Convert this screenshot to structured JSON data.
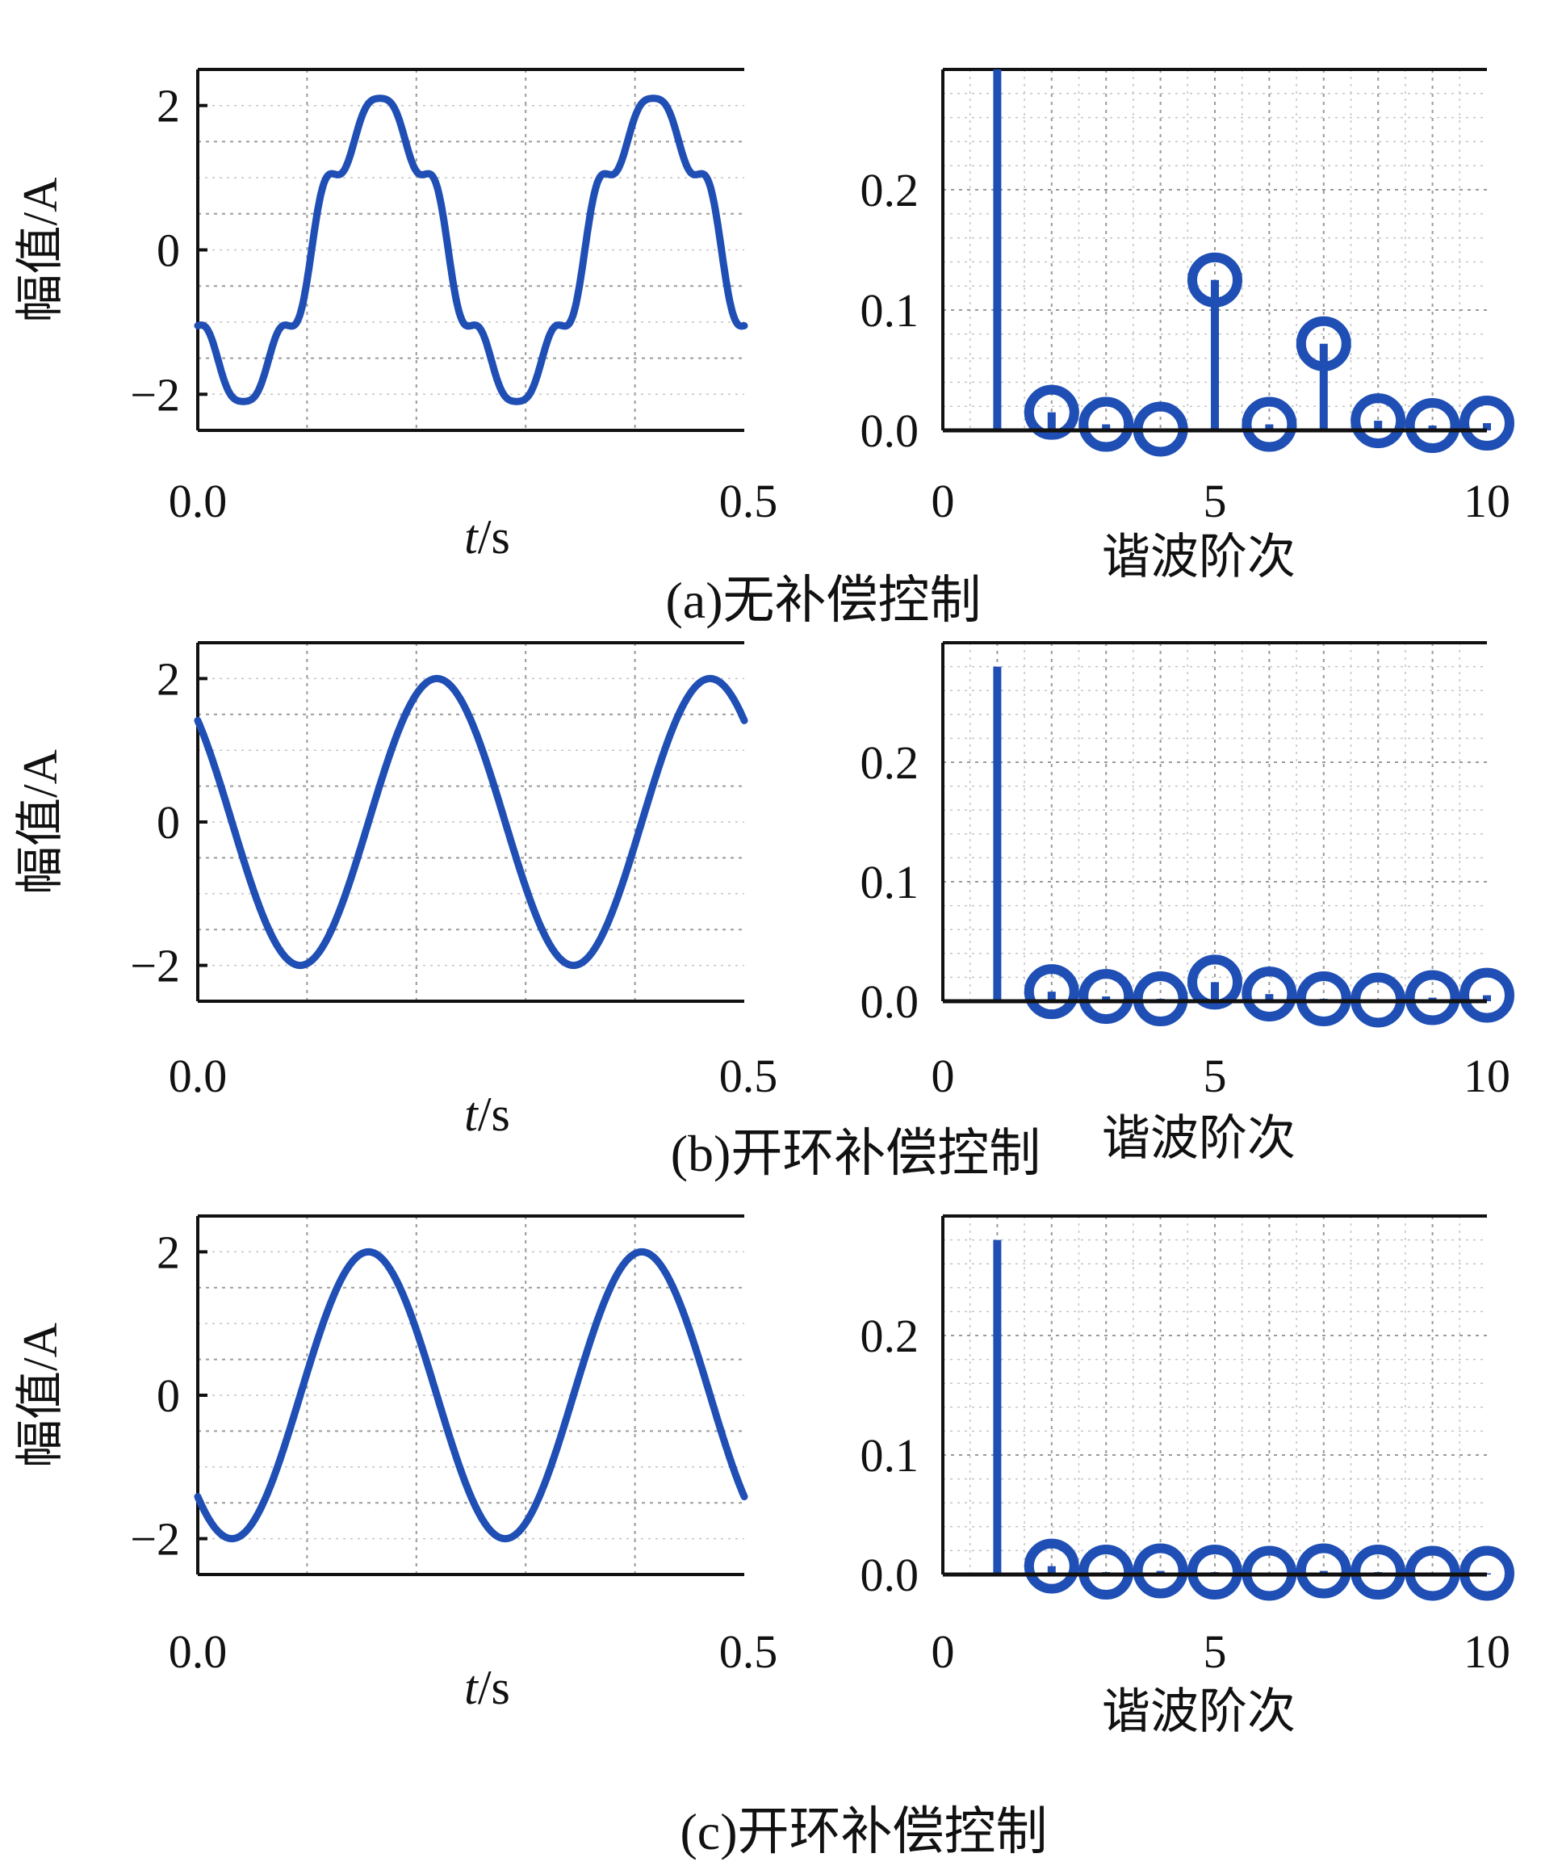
{
  "chart_data": [
    {
      "panel": "a",
      "caption": "(a)无补偿控制",
      "waveform": {
        "type": "line",
        "xlabel": "t/s",
        "ylabel": "幅值/A",
        "xlim": [
          0,
          0.5
        ],
        "ylim": [
          -2.5,
          2.5
        ],
        "xticks": [
          "0.0",
          "0.5"
        ],
        "yticks": [
          "2",
          "0",
          "−2"
        ],
        "ytick_values": [
          2,
          0,
          -2
        ],
        "grid": true,
        "series": [
          {
            "color": "#1f4fb4",
            "amplitude": 2.0,
            "frequency_hz": 4,
            "phase_deg": 210,
            "harmonics": [
              {
                "order": 5,
                "amplitude": 0.24
              },
              {
                "order": 7,
                "amplitude": 0.14
              }
            ]
          }
        ]
      },
      "spectrum": {
        "type": "bar",
        "style": "stem",
        "xlabel": "谐波阶次",
        "xlim": [
          0,
          10
        ],
        "ylim": [
          0,
          0.3
        ],
        "xticks": [
          "0",
          "5",
          "10"
        ],
        "xtick_values": [
          0,
          5,
          10
        ],
        "yticks": [
          "0.2",
          "0.1",
          "0.0"
        ],
        "ytick_values": [
          0.2,
          0.1,
          0.0
        ],
        "grid": true,
        "x": [
          1,
          2,
          3,
          4,
          5,
          6,
          7,
          8,
          9,
          10
        ],
        "values": [
          0.3,
          0.015,
          0.005,
          0.001,
          0.125,
          0.005,
          0.072,
          0.008,
          0.004,
          0.006
        ]
      }
    },
    {
      "panel": "b",
      "caption": "(b)开环补偿控制",
      "waveform": {
        "type": "line",
        "xlabel": "t/s",
        "ylabel": "幅值/A",
        "xlim": [
          0,
          0.5
        ],
        "ylim": [
          -2.5,
          2.5
        ],
        "xticks": [
          "0.0",
          "0.5"
        ],
        "yticks": [
          "2",
          "0",
          "−2"
        ],
        "ytick_values": [
          2,
          0,
          -2
        ],
        "grid": true,
        "series": [
          {
            "color": "#1f4fb4",
            "amplitude": 2.0,
            "frequency_hz": 4,
            "phase_deg": 135,
            "harmonics": []
          }
        ]
      },
      "spectrum": {
        "type": "bar",
        "style": "stem",
        "xlabel": "谐波阶次",
        "xlim": [
          0,
          10
        ],
        "ylim": [
          0,
          0.3
        ],
        "xticks": [
          "0",
          "5",
          "10"
        ],
        "xtick_values": [
          0,
          5,
          10
        ],
        "yticks": [
          "0.2",
          "0.1",
          "0.0"
        ],
        "ytick_values": [
          0.2,
          0.1,
          0.0
        ],
        "grid": true,
        "x": [
          1,
          2,
          3,
          4,
          5,
          6,
          7,
          8,
          9,
          10
        ],
        "values": [
          0.28,
          0.008,
          0.004,
          0.002,
          0.016,
          0.006,
          0.002,
          0.001,
          0.003,
          0.005
        ]
      }
    },
    {
      "panel": "c",
      "caption": "(c)开环补偿控制",
      "waveform": {
        "type": "line",
        "xlabel": "t/s",
        "ylabel": "幅值/A",
        "xlim": [
          0,
          0.5
        ],
        "ylim": [
          -2.5,
          2.5
        ],
        "xticks": [
          "0.0",
          "0.5"
        ],
        "yticks": [
          "2",
          "0",
          "−2"
        ],
        "ytick_values": [
          2,
          0,
          -2
        ],
        "grid": true,
        "series": [
          {
            "color": "#1f4fb4",
            "amplitude": 2.0,
            "frequency_hz": 4,
            "phase_deg": 225,
            "harmonics": []
          }
        ]
      },
      "spectrum": {
        "type": "bar",
        "style": "stem",
        "xlabel": "谐波阶次",
        "xlim": [
          0,
          10
        ],
        "ylim": [
          0,
          0.3
        ],
        "xticks": [
          "0",
          "5",
          "10"
        ],
        "xtick_values": [
          0,
          5,
          10
        ],
        "yticks": [
          "0.2",
          "0.1",
          "0.0"
        ],
        "ytick_values": [
          0.2,
          0.1,
          0.0
        ],
        "grid": true,
        "x": [
          1,
          2,
          3,
          4,
          5,
          6,
          7,
          8,
          9,
          10
        ],
        "values": [
          0.28,
          0.007,
          0.002,
          0.003,
          0.002,
          0.001,
          0.003,
          0.002,
          0.001,
          0.001
        ]
      }
    }
  ]
}
